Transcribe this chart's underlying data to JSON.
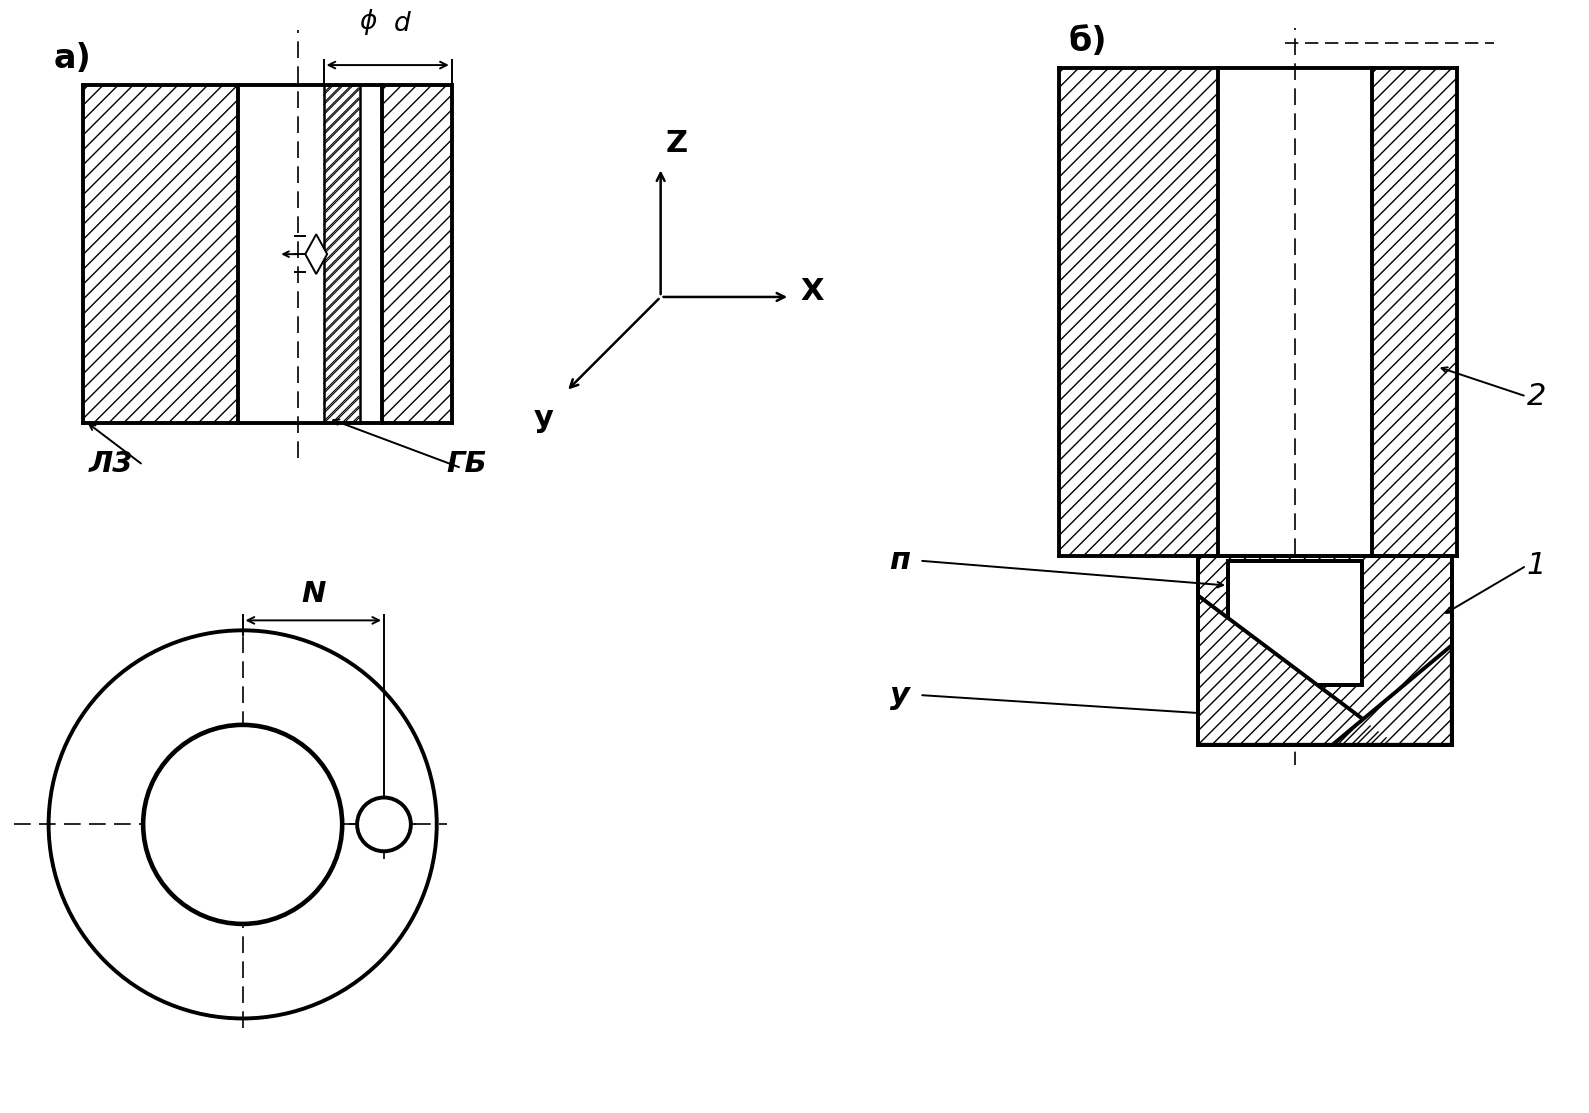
{
  "bg_color": "#ffffff",
  "line_color": "#000000",
  "label_a": "а)",
  "label_b": "б)",
  "label_LZ": "Л3",
  "label_GB": "ГБ",
  "label_N": "N",
  "label_phid": "φd",
  "label_Z": "Z",
  "label_X": "X",
  "label_Y": "y",
  "label_P": "п",
  "label_U": "у",
  "label_1": "1",
  "label_2": "2"
}
